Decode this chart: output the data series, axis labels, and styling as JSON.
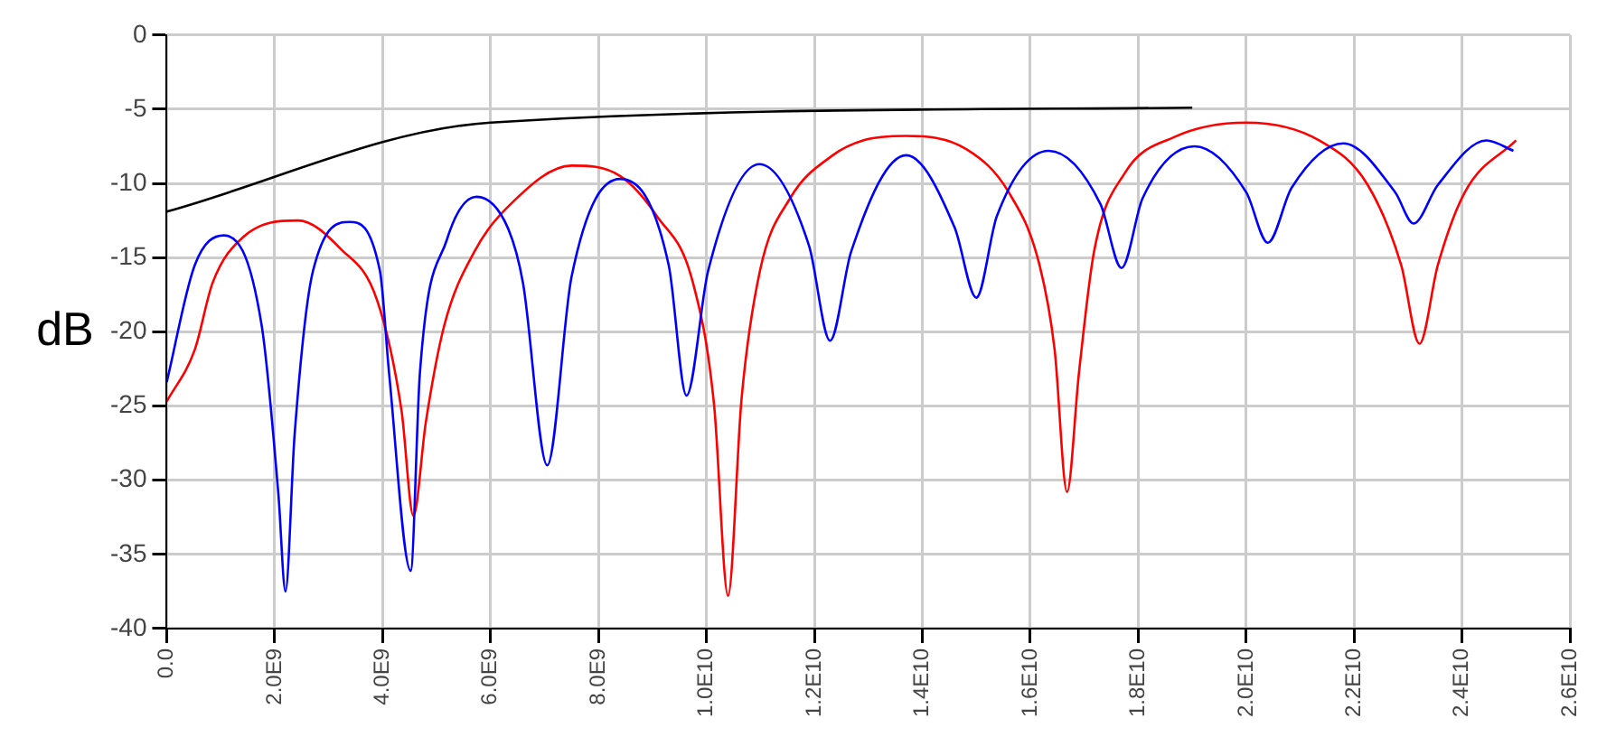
{
  "chart_data": {
    "type": "line",
    "ylabel": "dB",
    "xlim": [
      0,
      26000000000.0
    ],
    "ylim": [
      -40,
      0
    ],
    "xticks": [
      {
        "value": 0,
        "label": "0.0"
      },
      {
        "value": 2000000000.0,
        "label": "2.0E9"
      },
      {
        "value": 4000000000.0,
        "label": "4.0E9"
      },
      {
        "value": 6000000000.0,
        "label": "6.0E9"
      },
      {
        "value": 8000000000.0,
        "label": "8.0E9"
      },
      {
        "value": 10000000000.0,
        "label": "1.0E10"
      },
      {
        "value": 12000000000.0,
        "label": "1.2E10"
      },
      {
        "value": 14000000000.0,
        "label": "1.4E10"
      },
      {
        "value": 16000000000.0,
        "label": "1.6E10"
      },
      {
        "value": 18000000000.0,
        "label": "1.8E10"
      },
      {
        "value": 20000000000.0,
        "label": "2.0E10"
      },
      {
        "value": 22000000000.0,
        "label": "2.2E10"
      },
      {
        "value": 24000000000.0,
        "label": "2.4E10"
      },
      {
        "value": 26000000000.0,
        "label": "2.6E10"
      }
    ],
    "yticks": [
      0,
      -5,
      -10,
      -15,
      -20,
      -25,
      -30,
      -35,
      -40
    ],
    "grid": true,
    "legend": false,
    "marker": "none",
    "line_style": "solid",
    "series": [
      {
        "color": "#0000ff",
        "x": [
          0,
          520000000.0,
          1060000000.0,
          1760000000.0,
          2070000000.0,
          2200000000.0,
          2370000000.0,
          2710000000.0,
          3390000000.0,
          3950000000.0,
          4120000000.0,
          4520000000.0,
          4690000000.0,
          5190000000.0,
          5740000000.0,
          6320000000.0,
          6600000000.0,
          7050000000.0,
          7500000000.0,
          8400000000.0,
          9300000000.0,
          9630000000.0,
          10030000000.0,
          10980000000.0,
          11900000000.0,
          12290000000.0,
          12680000000.0,
          13700000000.0,
          14600000000.0,
          15000000000.0,
          15380000000.0,
          16340000000.0,
          17300000000.0,
          17690000000.0,
          18080000000.0,
          19040000000.0,
          20000000000.0,
          20400000000.0,
          20840000000.0,
          21800000000.0,
          22760000000.0,
          23100000000.0,
          23550000000.0,
          24450000000.0,
          24950000000.0
        ],
        "values": [
          -23.4,
          -15.5,
          -13.5,
          -19.6,
          -31.0,
          -37.5,
          -26.9,
          -15.9,
          -12.6,
          -15.9,
          -22.8,
          -36.1,
          -22.8,
          -13.8,
          -10.9,
          -13.0,
          -16.7,
          -29.0,
          -16.3,
          -9.7,
          -15.5,
          -24.3,
          -15.9,
          -8.7,
          -14.2,
          -20.6,
          -14.6,
          -8.1,
          -13.0,
          -17.7,
          -12.2,
          -7.8,
          -11.4,
          -15.7,
          -11.0,
          -7.5,
          -10.6,
          -14.0,
          -10.3,
          -7.3,
          -10.6,
          -12.7,
          -10.1,
          -7.1,
          -7.8
        ]
      },
      {
        "color": "#ff0000",
        "x": [
          0,
          520000000.0,
          850000000.0,
          1420000000.0,
          2430000000.0,
          3220000000.0,
          3900000000.0,
          4350000000.0,
          4570000000.0,
          4800000000.0,
          5140000000.0,
          5700000000.0,
          6370000000.0,
          7500000000.0,
          8400000000.0,
          9080000000.0,
          9750000000.0,
          10140000000.0,
          10400000000.0,
          10650000000.0,
          10990000000.0,
          11550000000.0,
          12340000000.0,
          12900000000.0,
          13690000000.0,
          14820000000.0,
          15600000000.0,
          16170000000.0,
          16450000000.0,
          16680000000.0,
          16900000000.0,
          17180000000.0,
          17750000000.0,
          18650000000.0,
          20000000000.0,
          21350000000.0,
          22250000000.0,
          22870000000.0,
          23210000000.0,
          23550000000.0,
          24050000000.0,
          25000000000.0
        ],
        "values": [
          -24.7,
          -21.2,
          -16.7,
          -13.6,
          -12.5,
          -14.4,
          -17.9,
          -25.3,
          -32.4,
          -26.1,
          -19.6,
          -14.6,
          -11.4,
          -8.8,
          -9.5,
          -12.2,
          -16.7,
          -24.9,
          -37.8,
          -24.5,
          -15.9,
          -11.0,
          -8.1,
          -7.1,
          -6.8,
          -7.7,
          -10.6,
          -15.5,
          -21.2,
          -30.8,
          -22.8,
          -14.6,
          -9.3,
          -6.9,
          -5.9,
          -7.1,
          -10.1,
          -15.5,
          -20.8,
          -15.5,
          -10.6,
          -7.1
        ]
      },
      {
        "color": "#000000",
        "x": [
          0,
          6000000000.0,
          19000000000.0
        ],
        "values": [
          -11.9,
          -5.9,
          -4.9
        ]
      }
    ]
  }
}
